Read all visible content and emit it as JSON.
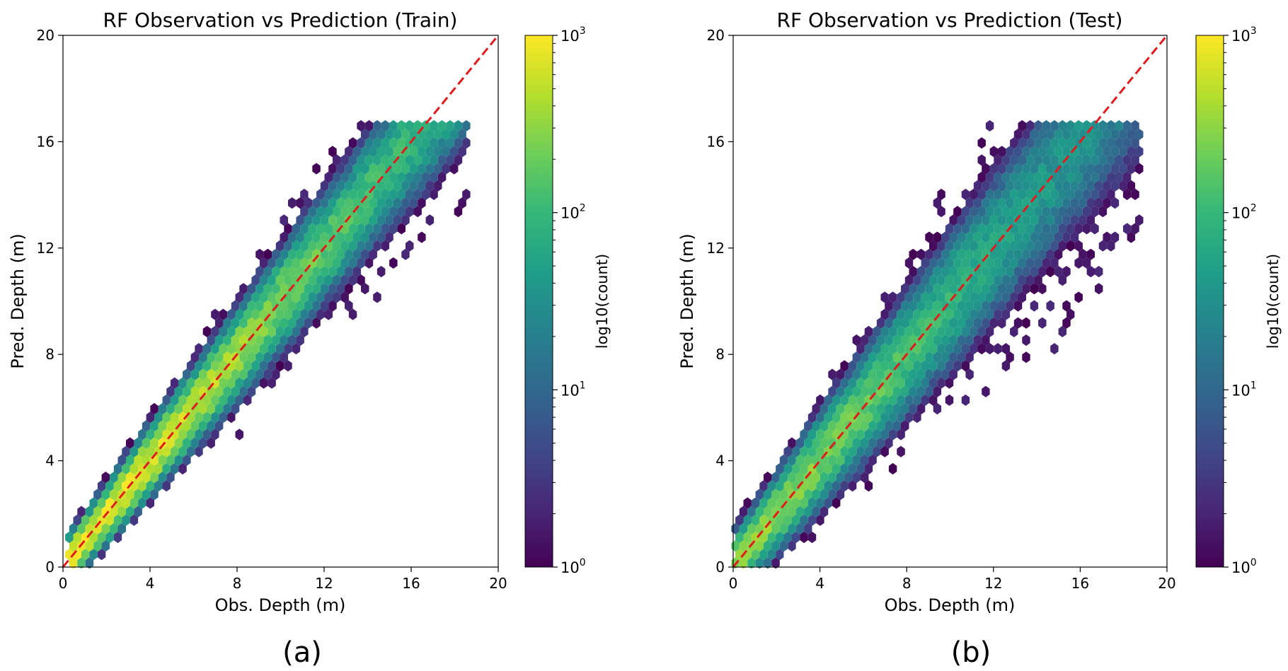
{
  "colorbar_ticks": [
    {
      "base": "10",
      "exp": "0"
    },
    {
      "base": "10",
      "exp": "1"
    },
    {
      "base": "10",
      "exp": "2"
    },
    {
      "base": "10",
      "exp": "3"
    }
  ],
  "colormap": [
    "#440154",
    "#482878",
    "#3e4a89",
    "#31688e",
    "#26828e",
    "#1f9e89",
    "#35b779",
    "#6ece58",
    "#b5de2b",
    "#fde725"
  ],
  "reference_line_color": "#e31a1c",
  "chart_data": [
    {
      "type": "heatmap",
      "subtype": "hexbin",
      "title": "RF Observation vs Prediction (Train)",
      "xlabel": "Obs. Depth (m)",
      "ylabel": "Pred. Depth (m)",
      "xlim": [
        0,
        20
      ],
      "ylim": [
        0,
        20
      ],
      "xticks": [
        "0",
        "4",
        "8",
        "12",
        "16",
        "20"
      ],
      "yticks": [
        "0",
        "4",
        "8",
        "12",
        "16",
        "20"
      ],
      "colorbar_label": "log10(count)",
      "colorbar_range": [
        1,
        1000
      ],
      "colorbar_scale": "log",
      "reference_line": {
        "type": "y=x",
        "style": "dashed"
      },
      "panel_label": "(a)",
      "density_profile": {
        "x_range": [
          0.2,
          18.7
        ],
        "core_spread": 0.7,
        "outer_spread": 1.5,
        "peak_count": 1000,
        "peak_x": 3.0,
        "y_max": 16.8
      }
    },
    {
      "type": "heatmap",
      "subtype": "hexbin",
      "title": "RF Observation vs Prediction (Test)",
      "xlabel": "Obs. Depth (m)",
      "ylabel": "Pred. Depth (m)",
      "xlim": [
        0,
        20
      ],
      "ylim": [
        0,
        20
      ],
      "xticks": [
        "0",
        "4",
        "8",
        "12",
        "16",
        "20"
      ],
      "yticks": [
        "0",
        "4",
        "8",
        "12",
        "16",
        "20"
      ],
      "colorbar_label": "log10(count)",
      "colorbar_range": [
        1,
        1000
      ],
      "colorbar_scale": "log",
      "reference_line": {
        "type": "y=x",
        "style": "dashed"
      },
      "panel_label": "(b)",
      "density_profile": {
        "x_range": [
          0.1,
          18.8
        ],
        "core_spread": 1.0,
        "outer_spread": 2.1,
        "peak_count": 350,
        "peak_x": 3.0,
        "y_max": 16.8
      }
    }
  ]
}
